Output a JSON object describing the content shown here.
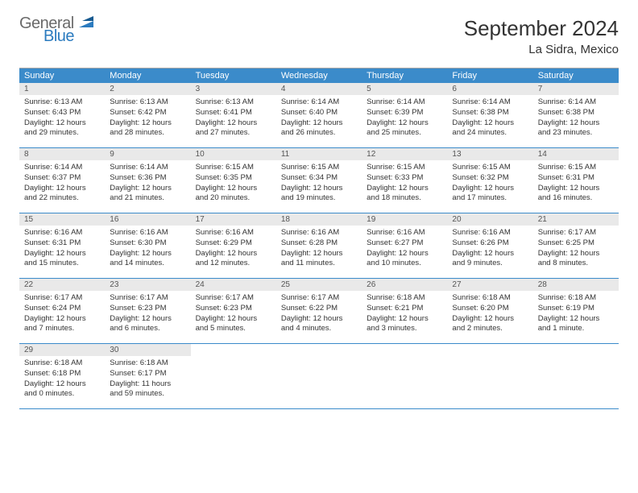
{
  "logo": {
    "line1": "General",
    "line2": "Blue"
  },
  "title": "September 2024",
  "location": "La Sidra, Mexico",
  "colors": {
    "header_bg": "#3b8bca",
    "header_text": "#ffffff",
    "daynum_bg": "#e9e9e9",
    "border": "#3b8bca",
    "text": "#333333",
    "logo_gray": "#6a6a6a",
    "logo_blue": "#2b7bbf"
  },
  "day_names": [
    "Sunday",
    "Monday",
    "Tuesday",
    "Wednesday",
    "Thursday",
    "Friday",
    "Saturday"
  ],
  "weeks": [
    [
      {
        "num": "1",
        "sunrise": "Sunrise: 6:13 AM",
        "sunset": "Sunset: 6:43 PM",
        "daylight1": "Daylight: 12 hours",
        "daylight2": "and 29 minutes."
      },
      {
        "num": "2",
        "sunrise": "Sunrise: 6:13 AM",
        "sunset": "Sunset: 6:42 PM",
        "daylight1": "Daylight: 12 hours",
        "daylight2": "and 28 minutes."
      },
      {
        "num": "3",
        "sunrise": "Sunrise: 6:13 AM",
        "sunset": "Sunset: 6:41 PM",
        "daylight1": "Daylight: 12 hours",
        "daylight2": "and 27 minutes."
      },
      {
        "num": "4",
        "sunrise": "Sunrise: 6:14 AM",
        "sunset": "Sunset: 6:40 PM",
        "daylight1": "Daylight: 12 hours",
        "daylight2": "and 26 minutes."
      },
      {
        "num": "5",
        "sunrise": "Sunrise: 6:14 AM",
        "sunset": "Sunset: 6:39 PM",
        "daylight1": "Daylight: 12 hours",
        "daylight2": "and 25 minutes."
      },
      {
        "num": "6",
        "sunrise": "Sunrise: 6:14 AM",
        "sunset": "Sunset: 6:38 PM",
        "daylight1": "Daylight: 12 hours",
        "daylight2": "and 24 minutes."
      },
      {
        "num": "7",
        "sunrise": "Sunrise: 6:14 AM",
        "sunset": "Sunset: 6:38 PM",
        "daylight1": "Daylight: 12 hours",
        "daylight2": "and 23 minutes."
      }
    ],
    [
      {
        "num": "8",
        "sunrise": "Sunrise: 6:14 AM",
        "sunset": "Sunset: 6:37 PM",
        "daylight1": "Daylight: 12 hours",
        "daylight2": "and 22 minutes."
      },
      {
        "num": "9",
        "sunrise": "Sunrise: 6:14 AM",
        "sunset": "Sunset: 6:36 PM",
        "daylight1": "Daylight: 12 hours",
        "daylight2": "and 21 minutes."
      },
      {
        "num": "10",
        "sunrise": "Sunrise: 6:15 AM",
        "sunset": "Sunset: 6:35 PM",
        "daylight1": "Daylight: 12 hours",
        "daylight2": "and 20 minutes."
      },
      {
        "num": "11",
        "sunrise": "Sunrise: 6:15 AM",
        "sunset": "Sunset: 6:34 PM",
        "daylight1": "Daylight: 12 hours",
        "daylight2": "and 19 minutes."
      },
      {
        "num": "12",
        "sunrise": "Sunrise: 6:15 AM",
        "sunset": "Sunset: 6:33 PM",
        "daylight1": "Daylight: 12 hours",
        "daylight2": "and 18 minutes."
      },
      {
        "num": "13",
        "sunrise": "Sunrise: 6:15 AM",
        "sunset": "Sunset: 6:32 PM",
        "daylight1": "Daylight: 12 hours",
        "daylight2": "and 17 minutes."
      },
      {
        "num": "14",
        "sunrise": "Sunrise: 6:15 AM",
        "sunset": "Sunset: 6:31 PM",
        "daylight1": "Daylight: 12 hours",
        "daylight2": "and 16 minutes."
      }
    ],
    [
      {
        "num": "15",
        "sunrise": "Sunrise: 6:16 AM",
        "sunset": "Sunset: 6:31 PM",
        "daylight1": "Daylight: 12 hours",
        "daylight2": "and 15 minutes."
      },
      {
        "num": "16",
        "sunrise": "Sunrise: 6:16 AM",
        "sunset": "Sunset: 6:30 PM",
        "daylight1": "Daylight: 12 hours",
        "daylight2": "and 14 minutes."
      },
      {
        "num": "17",
        "sunrise": "Sunrise: 6:16 AM",
        "sunset": "Sunset: 6:29 PM",
        "daylight1": "Daylight: 12 hours",
        "daylight2": "and 12 minutes."
      },
      {
        "num": "18",
        "sunrise": "Sunrise: 6:16 AM",
        "sunset": "Sunset: 6:28 PM",
        "daylight1": "Daylight: 12 hours",
        "daylight2": "and 11 minutes."
      },
      {
        "num": "19",
        "sunrise": "Sunrise: 6:16 AM",
        "sunset": "Sunset: 6:27 PM",
        "daylight1": "Daylight: 12 hours",
        "daylight2": "and 10 minutes."
      },
      {
        "num": "20",
        "sunrise": "Sunrise: 6:16 AM",
        "sunset": "Sunset: 6:26 PM",
        "daylight1": "Daylight: 12 hours",
        "daylight2": "and 9 minutes."
      },
      {
        "num": "21",
        "sunrise": "Sunrise: 6:17 AM",
        "sunset": "Sunset: 6:25 PM",
        "daylight1": "Daylight: 12 hours",
        "daylight2": "and 8 minutes."
      }
    ],
    [
      {
        "num": "22",
        "sunrise": "Sunrise: 6:17 AM",
        "sunset": "Sunset: 6:24 PM",
        "daylight1": "Daylight: 12 hours",
        "daylight2": "and 7 minutes."
      },
      {
        "num": "23",
        "sunrise": "Sunrise: 6:17 AM",
        "sunset": "Sunset: 6:23 PM",
        "daylight1": "Daylight: 12 hours",
        "daylight2": "and 6 minutes."
      },
      {
        "num": "24",
        "sunrise": "Sunrise: 6:17 AM",
        "sunset": "Sunset: 6:23 PM",
        "daylight1": "Daylight: 12 hours",
        "daylight2": "and 5 minutes."
      },
      {
        "num": "25",
        "sunrise": "Sunrise: 6:17 AM",
        "sunset": "Sunset: 6:22 PM",
        "daylight1": "Daylight: 12 hours",
        "daylight2": "and 4 minutes."
      },
      {
        "num": "26",
        "sunrise": "Sunrise: 6:18 AM",
        "sunset": "Sunset: 6:21 PM",
        "daylight1": "Daylight: 12 hours",
        "daylight2": "and 3 minutes."
      },
      {
        "num": "27",
        "sunrise": "Sunrise: 6:18 AM",
        "sunset": "Sunset: 6:20 PM",
        "daylight1": "Daylight: 12 hours",
        "daylight2": "and 2 minutes."
      },
      {
        "num": "28",
        "sunrise": "Sunrise: 6:18 AM",
        "sunset": "Sunset: 6:19 PM",
        "daylight1": "Daylight: 12 hours",
        "daylight2": "and 1 minute."
      }
    ],
    [
      {
        "num": "29",
        "sunrise": "Sunrise: 6:18 AM",
        "sunset": "Sunset: 6:18 PM",
        "daylight1": "Daylight: 12 hours",
        "daylight2": "and 0 minutes."
      },
      {
        "num": "30",
        "sunrise": "Sunrise: 6:18 AM",
        "sunset": "Sunset: 6:17 PM",
        "daylight1": "Daylight: 11 hours",
        "daylight2": "and 59 minutes."
      },
      null,
      null,
      null,
      null,
      null
    ]
  ]
}
